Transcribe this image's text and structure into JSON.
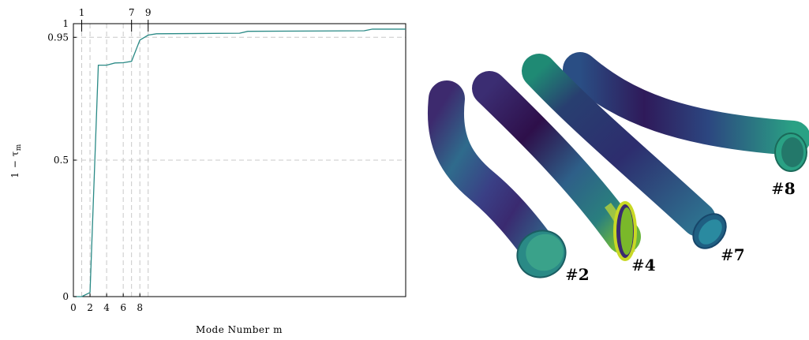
{
  "chart_data": {
    "type": "line",
    "title": "",
    "xlabel": "Mode Number m",
    "ylabel": "1 − τ_m",
    "xlim": [
      0,
      40
    ],
    "ylim": [
      0,
      1
    ],
    "x_ticks": [
      0,
      2,
      4,
      6,
      8
    ],
    "x_tick_labels": [
      "0",
      "2",
      "4",
      "6",
      "8"
    ],
    "top_ticks": [
      1,
      7,
      9
    ],
    "top_tick_labels": [
      "1",
      "7",
      "9"
    ],
    "y_ticks": [
      0,
      0.5,
      0.95,
      1
    ],
    "y_tick_labels": [
      "0",
      "0.5",
      "0.95",
      "1"
    ],
    "horizontal_reference_lines": [
      0.5,
      0.95,
      1
    ],
    "vertical_reference_lines": [
      1,
      2,
      4,
      6,
      7,
      8,
      9
    ],
    "grid": "dashed reference lines",
    "color": "#2a8a86",
    "series": [
      {
        "x": [
          0,
          1,
          2,
          3,
          4,
          5,
          6,
          7,
          8,
          9,
          10,
          20,
          21,
          35,
          36,
          40
        ],
        "y": [
          0,
          0,
          0.015,
          0.848,
          0.848,
          0.856,
          0.857,
          0.862,
          0.94,
          0.958,
          0.963,
          0.965,
          0.972,
          0.974,
          0.98,
          0.98
        ]
      }
    ]
  },
  "tubes": [
    {
      "label": "#2",
      "number": "2"
    },
    {
      "label": "#4",
      "number": "4"
    },
    {
      "label": "#7",
      "number": "7"
    },
    {
      "label": "#8",
      "number": "8"
    }
  ]
}
